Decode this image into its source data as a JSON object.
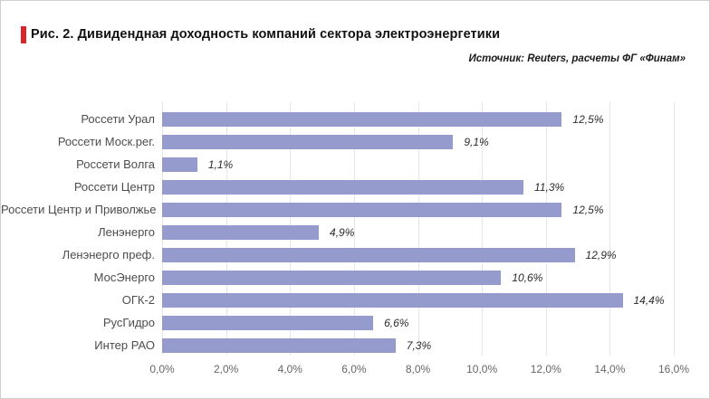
{
  "chart_data": {
    "type": "bar",
    "orientation": "horizontal",
    "title": "Рис. 2. Дивидендная доходность компаний сектора электроэнергетики",
    "source": "Источник: Reuters, расчеты ФГ «Финам»",
    "categories": [
      "Россети Урал",
      "Россети Моск.рег.",
      "Россети Волга",
      "Россети Центр",
      "Россети Центр и Приволжье",
      "Ленэнерго",
      "Ленэнерго преф.",
      "МосЭнерго",
      "ОГК-2",
      "РусГидро",
      "Интер РАО"
    ],
    "values": [
      12.5,
      9.1,
      1.1,
      11.3,
      12.5,
      4.9,
      12.9,
      10.6,
      14.4,
      6.6,
      7.3
    ],
    "value_labels": [
      "12,5%",
      "9,1%",
      "1,1%",
      "11,3%",
      "12,5%",
      "4,9%",
      "12,9%",
      "10,6%",
      "14,4%",
      "6,6%",
      "7,3%"
    ],
    "x_ticks": [
      0,
      2,
      4,
      6,
      8,
      10,
      12,
      14,
      16
    ],
    "x_tick_labels": [
      "0,0%",
      "2,0%",
      "4,0%",
      "6,0%",
      "8,0%",
      "10,0%",
      "12,0%",
      "14,0%",
      "16,0%"
    ],
    "xlim": [
      0,
      16
    ],
    "grid": true,
    "legend": false,
    "colors": {
      "bar": "#969bce",
      "title_accent": "#d9252b",
      "gridline": "#e5e5ec"
    }
  }
}
